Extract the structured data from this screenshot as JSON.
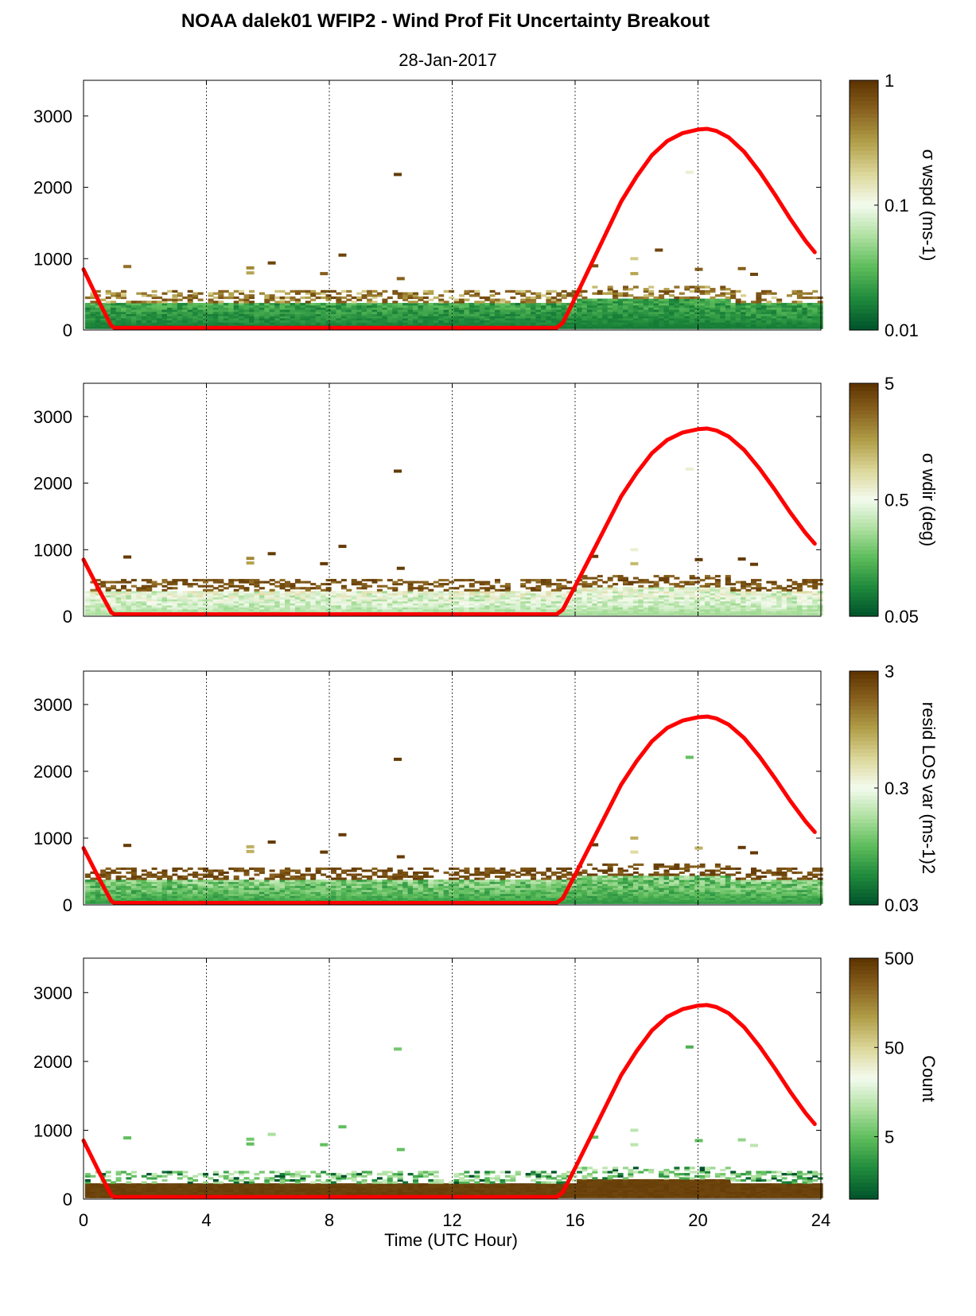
{
  "figure": {
    "title": "NOAA dalek01 WFIP2 - Wind Prof Fit Uncertainty Breakout",
    "subtitle": "28-Jan-2017",
    "xlabel": "Time (UTC Hour)"
  },
  "colors": {
    "sun_curve": "#ff0000",
    "colormap": [
      "#00522a",
      "#1f8a3c",
      "#5cbc5a",
      "#aee0a0",
      "#f4fbef",
      "#dcd79a",
      "#b2a04a",
      "#8a6420",
      "#5c3200"
    ],
    "empty": "#ffffff"
  },
  "chart_data": [
    {
      "type": "heatmap",
      "name": "wspd-uncertainty",
      "xlim": [
        0,
        24
      ],
      "ylim": [
        0,
        3500
      ],
      "xticks": [
        0,
        4,
        8,
        12,
        16,
        20,
        24
      ],
      "yticks": [
        0,
        1000,
        2000,
        3000
      ],
      "grid": "vertical-dotted",
      "colorbar": {
        "label": "σ wspd (ms-1)",
        "scale": "log",
        "range": [
          0.01,
          1
        ],
        "ticks": [
          {
            "value": 0.01,
            "label": "0.01"
          },
          {
            "value": 0.1,
            "label": "0.1"
          },
          {
            "value": 1,
            "label": "1"
          }
        ]
      },
      "profile": {
        "dense_top_m": 350,
        "low_base": 0.015,
        "low_var": 0.02,
        "sparse_base": 0.35,
        "sparse_var": 0.6
      },
      "outliers": [
        [
          10.2,
          2180,
          0.9
        ],
        [
          19.7,
          2210,
          0.12
        ],
        [
          1.4,
          890,
          0.5
        ],
        [
          5.4,
          870,
          0.4
        ],
        [
          6.1,
          940,
          0.8
        ],
        [
          8.4,
          1050,
          0.8
        ],
        [
          10.3,
          720,
          0.6
        ],
        [
          16.6,
          900,
          0.7
        ],
        [
          17.9,
          1000,
          0.2
        ],
        [
          20.0,
          850,
          0.6
        ],
        [
          21.4,
          860,
          0.6
        ],
        [
          21.8,
          780,
          0.8
        ],
        [
          5.4,
          800,
          0.3
        ],
        [
          7.8,
          790,
          0.6
        ],
        [
          17.9,
          790,
          0.3
        ],
        [
          18.7,
          1120,
          0.8
        ]
      ]
    },
    {
      "type": "heatmap",
      "name": "wdir-uncertainty",
      "xlim": [
        0,
        24
      ],
      "ylim": [
        0,
        3500
      ],
      "xticks": [
        0,
        4,
        8,
        12,
        16,
        20,
        24
      ],
      "yticks": [
        0,
        1000,
        2000,
        3000
      ],
      "grid": "vertical-dotted",
      "colorbar": {
        "label": "σ wdir (deg)",
        "scale": "log",
        "range": [
          0.05,
          5
        ],
        "ticks": [
          {
            "value": 0.05,
            "label": "0.05"
          },
          {
            "value": 0.5,
            "label": "0.5"
          },
          {
            "value": 5,
            "label": "5"
          }
        ]
      },
      "profile": {
        "dense_top_m": 350,
        "low_base": 0.25,
        "low_var": 0.6,
        "sparse_base": 3.0,
        "sparse_var": 2.0
      },
      "outliers": [
        [
          10.2,
          2180,
          4.5
        ],
        [
          19.7,
          2210,
          0.6
        ],
        [
          1.4,
          890,
          4.5
        ],
        [
          5.4,
          870,
          2.0
        ],
        [
          6.1,
          940,
          4.5
        ],
        [
          8.4,
          1050,
          4.5
        ],
        [
          10.3,
          720,
          4.5
        ],
        [
          16.6,
          900,
          4.5
        ],
        [
          17.9,
          1000,
          0.6
        ],
        [
          20.0,
          850,
          4.5
        ],
        [
          21.4,
          860,
          4.5
        ],
        [
          21.8,
          780,
          4.5
        ],
        [
          5.4,
          800,
          1.5
        ],
        [
          7.8,
          790,
          4.5
        ],
        [
          17.9,
          790,
          1.2
        ]
      ]
    },
    {
      "type": "heatmap",
      "name": "resid-los-variance",
      "xlim": [
        0,
        24
      ],
      "ylim": [
        0,
        3500
      ],
      "xticks": [
        0,
        4,
        8,
        12,
        16,
        20,
        24
      ],
      "yticks": [
        0,
        1000,
        2000,
        3000
      ],
      "grid": "vertical-dotted",
      "colorbar": {
        "label": "resid LOS var (ms-1)2",
        "scale": "log",
        "range": [
          0.03,
          3
        ],
        "ticks": [
          {
            "value": 0.03,
            "label": "0.03"
          },
          {
            "value": 0.3,
            "label": "0.3"
          },
          {
            "value": 3,
            "label": "3"
          }
        ]
      },
      "profile": {
        "dense_top_m": 350,
        "low_base": 0.06,
        "low_var": 0.15,
        "sparse_base": 2.0,
        "sparse_var": 1.0
      },
      "outliers": [
        [
          10.2,
          2180,
          2.7
        ],
        [
          19.7,
          2210,
          0.1
        ],
        [
          1.4,
          890,
          2.7
        ],
        [
          5.4,
          870,
          0.8
        ],
        [
          6.1,
          940,
          2.7
        ],
        [
          8.4,
          1050,
          2.7
        ],
        [
          10.3,
          720,
          2.7
        ],
        [
          16.6,
          900,
          2.7
        ],
        [
          17.9,
          1000,
          0.8
        ],
        [
          20.0,
          850,
          0.8
        ],
        [
          21.4,
          860,
          2.7
        ],
        [
          21.8,
          780,
          2.7
        ],
        [
          5.4,
          800,
          0.8
        ],
        [
          7.8,
          790,
          2.7
        ],
        [
          17.9,
          790,
          0.5
        ]
      ]
    },
    {
      "type": "heatmap",
      "name": "count",
      "xlim": [
        0,
        24
      ],
      "ylim": [
        0,
        3500
      ],
      "xticks": [
        0,
        4,
        8,
        12,
        16,
        20,
        24
      ],
      "yticks": [
        0,
        1000,
        2000,
        3000
      ],
      "xtick_labels": true,
      "grid": "vertical-dotted",
      "colorbar": {
        "label": "Count",
        "scale": "log",
        "range": [
          1,
          500
        ],
        "ticks": [
          {
            "value": 5,
            "label": "5"
          },
          {
            "value": 50,
            "label": "50"
          },
          {
            "value": 500,
            "label": "500"
          }
        ]
      },
      "profile": {
        "dense_top_m": 220,
        "low_base": 420,
        "low_var": 60,
        "sparse_base": 4,
        "sparse_var": 14
      },
      "outliers": [
        [
          10.2,
          2180,
          6
        ],
        [
          19.7,
          2210,
          4
        ],
        [
          1.4,
          890,
          5
        ],
        [
          5.4,
          870,
          6
        ],
        [
          6.1,
          940,
          10
        ],
        [
          8.4,
          1050,
          5
        ],
        [
          10.3,
          720,
          5
        ],
        [
          16.6,
          900,
          5
        ],
        [
          17.9,
          1000,
          12
        ],
        [
          20.0,
          850,
          5
        ],
        [
          21.4,
          860,
          8
        ],
        [
          21.8,
          780,
          12
        ],
        [
          5.4,
          800,
          5
        ],
        [
          7.8,
          790,
          5
        ],
        [
          17.9,
          790,
          12
        ]
      ]
    }
  ],
  "sun_curve": {
    "x": [
      0.0,
      0.5,
      0.9,
      1.0,
      15.4,
      15.6,
      16.0,
      16.5,
      17.0,
      17.5,
      18.0,
      18.5,
      19.0,
      19.5,
      20.0,
      20.3,
      20.6,
      21.0,
      21.5,
      22.0,
      22.5,
      23.0,
      23.5,
      23.8
    ],
    "y": [
      850,
      400,
      60,
      30,
      30,
      100,
      450,
      900,
      1350,
      1800,
      2150,
      2450,
      2650,
      2760,
      2810,
      2820,
      2790,
      2700,
      2500,
      2220,
      1900,
      1560,
      1250,
      1090
    ]
  }
}
